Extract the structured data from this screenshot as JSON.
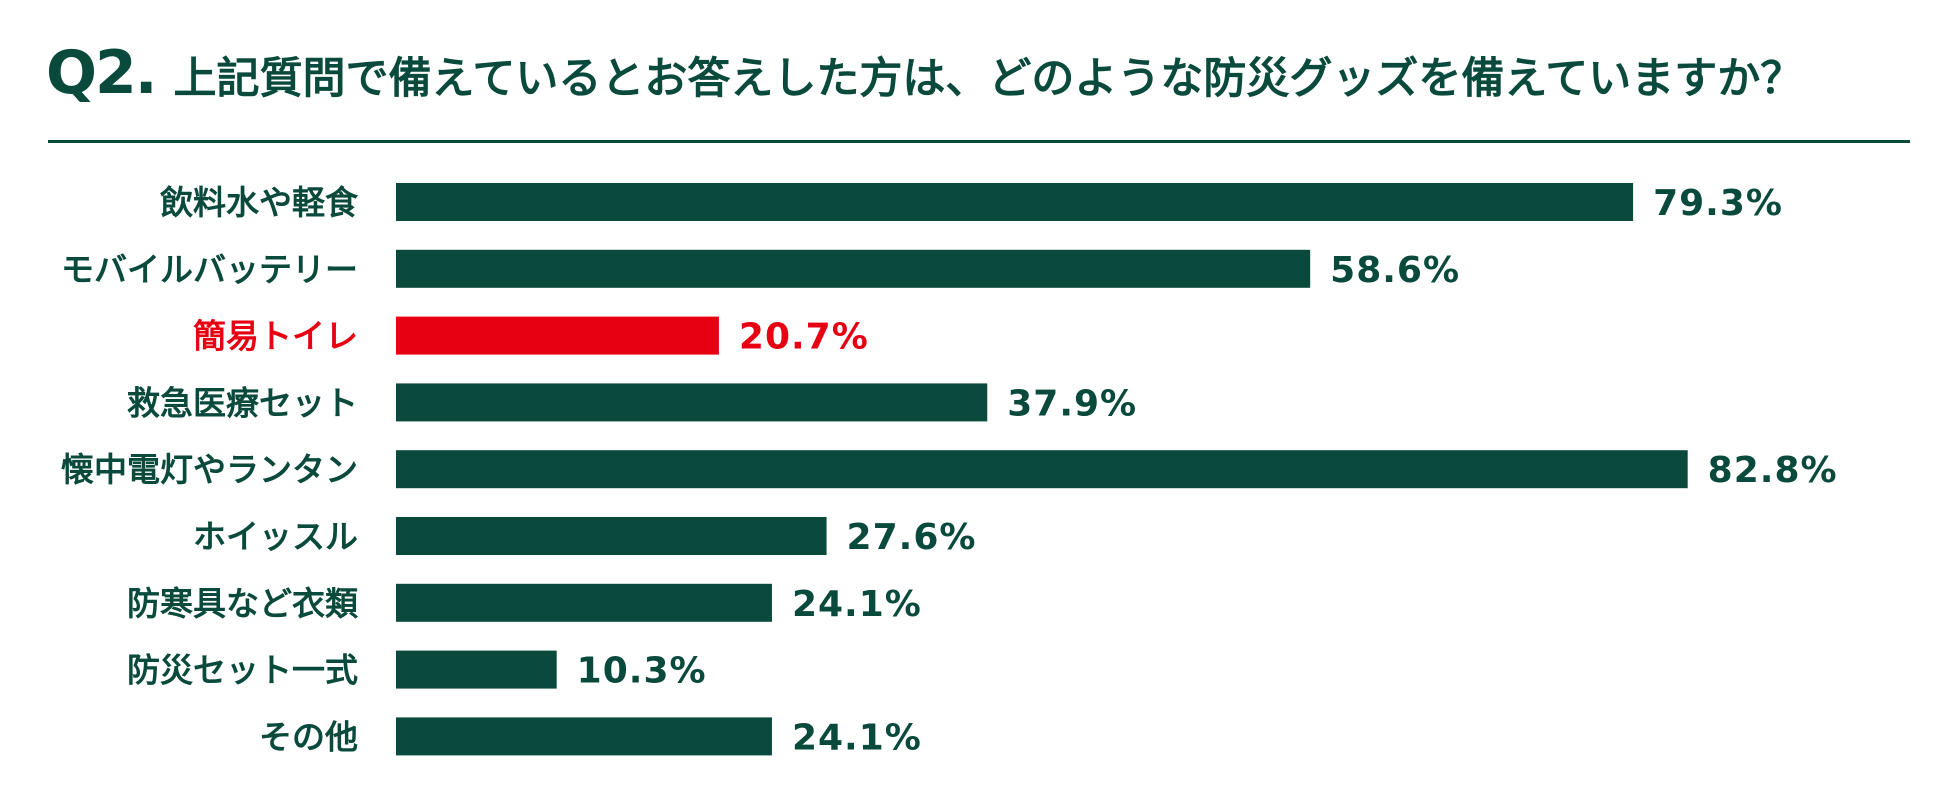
{
  "header": {
    "qnum": "Q2.",
    "question": "上記質問で備えているとお答えした方は、どのような防災グッズを備えていますか？"
  },
  "colors": {
    "bar": "#0a4a3c",
    "highlight": "#e60012",
    "text": "#0a4a3c",
    "rule": "#0a4a3c"
  },
  "chart_data": {
    "type": "bar",
    "orientation": "horizontal",
    "categories": [
      "飲料水や軽食",
      "モバイルバッテリー",
      "簡易トイレ",
      "救急医療セット",
      "懐中電灯やランタン",
      "ホイッスル",
      "防寒具など衣類",
      "防災セット一式",
      "その他"
    ],
    "values": [
      79.3,
      58.6,
      20.7,
      37.9,
      82.8,
      27.6,
      24.1,
      10.3,
      24.1
    ],
    "value_labels": [
      "79.3%",
      "58.6%",
      "20.7%",
      "37.9%",
      "82.8%",
      "27.6%",
      "24.1%",
      "10.3%",
      "24.1%"
    ],
    "highlight": [
      "簡易トイレ"
    ],
    "unit": "%",
    "xlim": [
      0,
      100
    ]
  }
}
